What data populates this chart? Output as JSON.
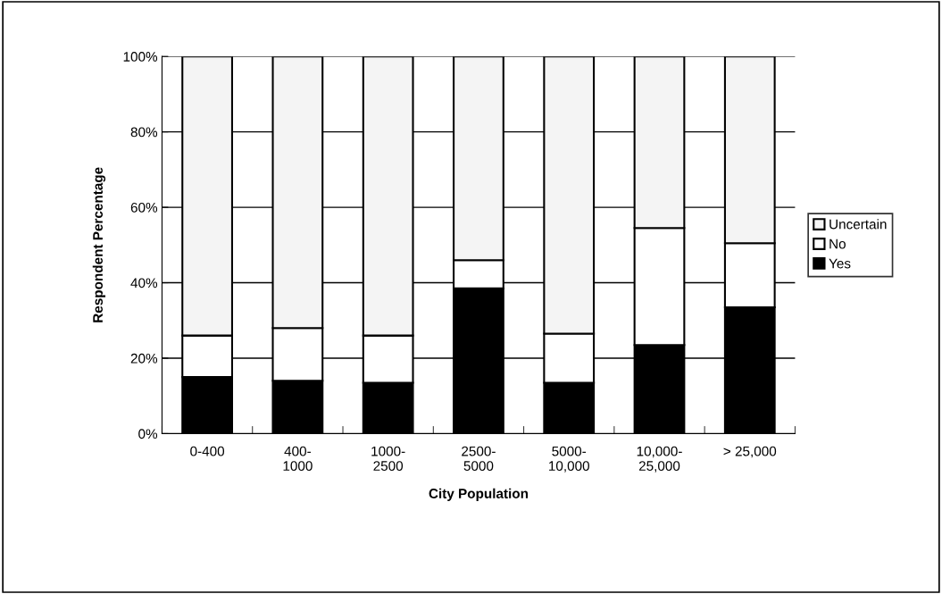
{
  "chart_data": {
    "type": "bar",
    "stacked": true,
    "xlabel": "City Population",
    "ylabel": "Respondent Percentage",
    "categories": [
      "0-400",
      "400-\n1000",
      "1000-\n2500",
      "2500-\n5000",
      "5000-\n10,000",
      "10,000-\n25,000",
      "> 25,000"
    ],
    "series": [
      {
        "name": "Yes",
        "color": "#000000",
        "values": [
          15,
          14,
          13.5,
          38.5,
          13.5,
          23.5,
          33.5
        ]
      },
      {
        "name": "No",
        "color": "#ffffff",
        "values": [
          11,
          14,
          12.5,
          7.5,
          13,
          31,
          17
        ]
      },
      {
        "name": "Uncertain",
        "color": "#f4f4f4",
        "values": [
          74,
          72,
          74,
          54,
          73.5,
          45.5,
          49.5
        ]
      }
    ],
    "ylim": [
      0,
      100
    ],
    "yticks": [
      {
        "value": 0,
        "label": "0%"
      },
      {
        "value": 20,
        "label": "20%"
      },
      {
        "value": 40,
        "label": "40%"
      },
      {
        "value": 60,
        "label": "60%"
      },
      {
        "value": 80,
        "label": "80%"
      },
      {
        "value": 100,
        "label": "100%"
      }
    ],
    "grid": "y",
    "legend": "right"
  }
}
